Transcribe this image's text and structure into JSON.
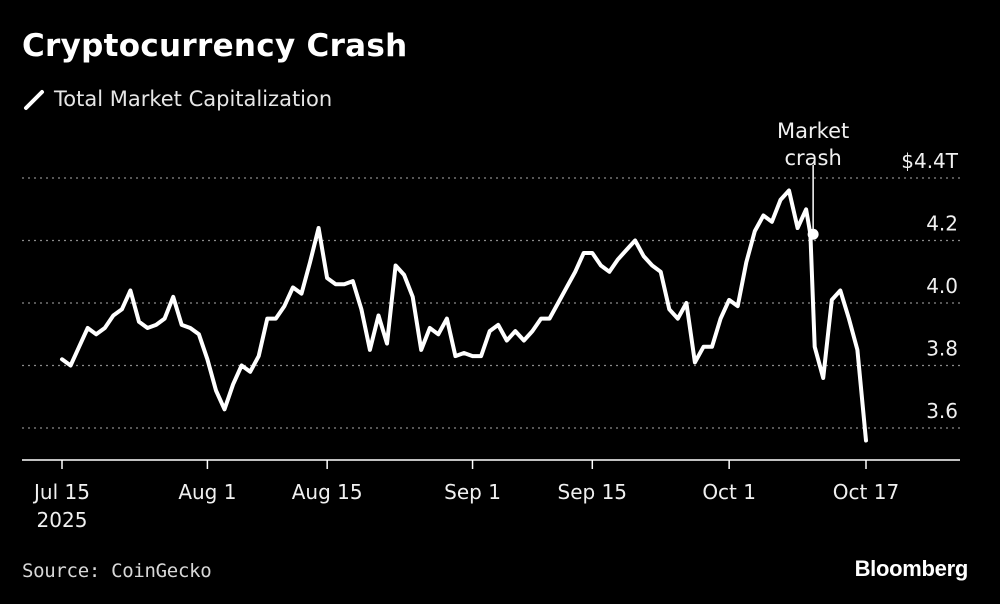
{
  "header": {
    "title": "Cryptocurrency Crash",
    "legend_label": "Total Market Capitalization"
  },
  "footer": {
    "source": "Source: CoinGecko",
    "brand": "Bloomberg"
  },
  "colors": {
    "background": "#000000",
    "line": "#ffffff",
    "grid": "#8a8a8a"
  },
  "chart_data": {
    "type": "line",
    "title": "Cryptocurrency Crash",
    "xlabel": "",
    "ylabel": "",
    "unit": "$T",
    "grid": true,
    "legend": "top-left",
    "ylim": [
      3.5,
      4.4
    ],
    "xlim": [
      "2025-07-15",
      "2025-10-17"
    ],
    "yticks": [
      {
        "value": 4.4,
        "label": "$4.4T"
      },
      {
        "value": 4.2,
        "label": "4.2"
      },
      {
        "value": 4.0,
        "label": "4.0"
      },
      {
        "value": 3.8,
        "label": "3.8"
      },
      {
        "value": 3.6,
        "label": "3.6"
      }
    ],
    "xticks": [
      {
        "date": "2025-07-15",
        "label": "Jul 15",
        "sublabel": "2025"
      },
      {
        "date": "2025-08-01",
        "label": "Aug 1",
        "sublabel": ""
      },
      {
        "date": "2025-08-15",
        "label": "Aug 15",
        "sublabel": ""
      },
      {
        "date": "2025-09-01",
        "label": "Sep 1",
        "sublabel": ""
      },
      {
        "date": "2025-09-15",
        "label": "Sep 15",
        "sublabel": ""
      },
      {
        "date": "2025-10-01",
        "label": "Oct 1",
        "sublabel": ""
      },
      {
        "date": "2025-10-17",
        "label": "Oct 17",
        "sublabel": ""
      }
    ],
    "annotation": {
      "date": "2025-10-10",
      "value": 4.22,
      "label_lines": [
        "Market",
        "crash"
      ]
    },
    "series": [
      {
        "name": "Total Market Capitalization",
        "points": [
          [
            "2025-07-15",
            3.82
          ],
          [
            "2025-07-16",
            3.8
          ],
          [
            "2025-07-17",
            3.86
          ],
          [
            "2025-07-18",
            3.92
          ],
          [
            "2025-07-19",
            3.9
          ],
          [
            "2025-07-20",
            3.92
          ],
          [
            "2025-07-21",
            3.96
          ],
          [
            "2025-07-22",
            3.98
          ],
          [
            "2025-07-23",
            4.04
          ],
          [
            "2025-07-24",
            3.94
          ],
          [
            "2025-07-25",
            3.92
          ],
          [
            "2025-07-26",
            3.93
          ],
          [
            "2025-07-27",
            3.95
          ],
          [
            "2025-07-28",
            4.02
          ],
          [
            "2025-07-29",
            3.93
          ],
          [
            "2025-07-30",
            3.92
          ],
          [
            "2025-07-31",
            3.9
          ],
          [
            "2025-08-01",
            3.82
          ],
          [
            "2025-08-02",
            3.72
          ],
          [
            "2025-08-03",
            3.66
          ],
          [
            "2025-08-04",
            3.74
          ],
          [
            "2025-08-05",
            3.8
          ],
          [
            "2025-08-06",
            3.78
          ],
          [
            "2025-08-07",
            3.83
          ],
          [
            "2025-08-08",
            3.95
          ],
          [
            "2025-08-09",
            3.95
          ],
          [
            "2025-08-10",
            3.99
          ],
          [
            "2025-08-11",
            4.05
          ],
          [
            "2025-08-12",
            4.03
          ],
          [
            "2025-08-13",
            4.13
          ],
          [
            "2025-08-14",
            4.24
          ],
          [
            "2025-08-15",
            4.08
          ],
          [
            "2025-08-16",
            4.06
          ],
          [
            "2025-08-17",
            4.06
          ],
          [
            "2025-08-18",
            4.07
          ],
          [
            "2025-08-19",
            3.98
          ],
          [
            "2025-08-20",
            3.85
          ],
          [
            "2025-08-21",
            3.96
          ],
          [
            "2025-08-22",
            3.87
          ],
          [
            "2025-08-23",
            4.12
          ],
          [
            "2025-08-24",
            4.09
          ],
          [
            "2025-08-25",
            4.02
          ],
          [
            "2025-08-26",
            3.85
          ],
          [
            "2025-08-27",
            3.92
          ],
          [
            "2025-08-28",
            3.9
          ],
          [
            "2025-08-29",
            3.95
          ],
          [
            "2025-08-30",
            3.83
          ],
          [
            "2025-08-31",
            3.84
          ],
          [
            "2025-09-01",
            3.83
          ],
          [
            "2025-09-02",
            3.83
          ],
          [
            "2025-09-03",
            3.91
          ],
          [
            "2025-09-04",
            3.93
          ],
          [
            "2025-09-05",
            3.88
          ],
          [
            "2025-09-06",
            3.91
          ],
          [
            "2025-09-07",
            3.88
          ],
          [
            "2025-09-08",
            3.91
          ],
          [
            "2025-09-09",
            3.95
          ],
          [
            "2025-09-10",
            3.95
          ],
          [
            "2025-09-11",
            4.0
          ],
          [
            "2025-09-12",
            4.05
          ],
          [
            "2025-09-13",
            4.1
          ],
          [
            "2025-09-14",
            4.16
          ],
          [
            "2025-09-15",
            4.16
          ],
          [
            "2025-09-16",
            4.12
          ],
          [
            "2025-09-17",
            4.1
          ],
          [
            "2025-09-18",
            4.14
          ],
          [
            "2025-09-19",
            4.17
          ],
          [
            "2025-09-20",
            4.2
          ],
          [
            "2025-09-21",
            4.15
          ],
          [
            "2025-09-22",
            4.12
          ],
          [
            "2025-09-23",
            4.1
          ],
          [
            "2025-09-24",
            3.98
          ],
          [
            "2025-09-25",
            3.95
          ],
          [
            "2025-09-26",
            4.0
          ],
          [
            "2025-09-27",
            3.81
          ],
          [
            "2025-09-28",
            3.86
          ],
          [
            "2025-09-29",
            3.86
          ],
          [
            "2025-09-30",
            3.95
          ],
          [
            "2025-10-01",
            4.01
          ],
          [
            "2025-10-02",
            3.99
          ],
          [
            "2025-10-03",
            4.13
          ],
          [
            "2025-10-04",
            4.23
          ],
          [
            "2025-10-05",
            4.28
          ],
          [
            "2025-10-06",
            4.26
          ],
          [
            "2025-10-07",
            4.33
          ],
          [
            "2025-10-08",
            4.36
          ],
          [
            "2025-10-09",
            4.24
          ],
          [
            "2025-10-10",
            4.3
          ],
          [
            "2025-10-10T12",
            4.22
          ],
          [
            "2025-10-11",
            3.86
          ],
          [
            "2025-10-12",
            3.76
          ],
          [
            "2025-10-13",
            4.01
          ],
          [
            "2025-10-14",
            4.04
          ],
          [
            "2025-10-15",
            3.95
          ],
          [
            "2025-10-16",
            3.85
          ],
          [
            "2025-10-17",
            3.56
          ]
        ]
      }
    ]
  }
}
